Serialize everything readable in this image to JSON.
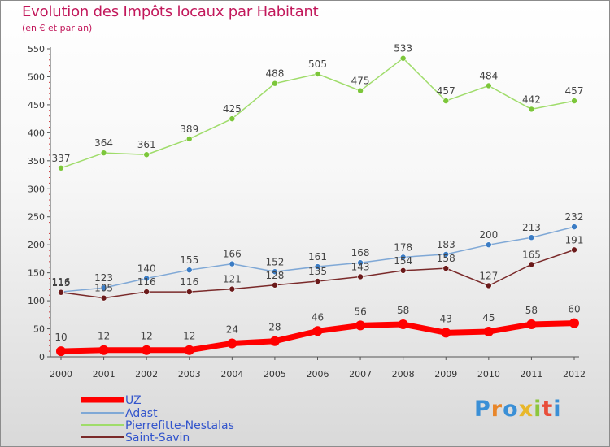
{
  "header": {
    "title": "Evolution des Impôts locaux par Habitant",
    "subtitle": "(en € et par an)"
  },
  "logo": {
    "text": "Proxiti",
    "colors": [
      "#3a8fd6",
      "#e8862a",
      "#3a8fd6",
      "#e8b72a",
      "#8cc63e",
      "#e84e3a",
      "#3a8fd6"
    ]
  },
  "chart_data": {
    "type": "line",
    "x": [
      "2000",
      "2001",
      "2002",
      "2003",
      "2004",
      "2005",
      "2006",
      "2007",
      "2008",
      "2009",
      "2010",
      "2011",
      "2012"
    ],
    "ylim": [
      0,
      550
    ],
    "yticks": [
      0,
      50,
      100,
      150,
      200,
      250,
      300,
      350,
      400,
      450,
      500,
      550
    ],
    "grid": false,
    "legend_position": "bottom-left",
    "series": [
      {
        "name": "UZ",
        "color": "#ff0000",
        "values": [
          10,
          12,
          12,
          12,
          24,
          28,
          46,
          56,
          58,
          43,
          45,
          58,
          60
        ]
      },
      {
        "name": "Adast",
        "color": "#4a86c5",
        "values": [
          116,
          123,
          140,
          155,
          166,
          152,
          161,
          168,
          178,
          183,
          200,
          213,
          232
        ]
      },
      {
        "name": "Pierrefitte-Nestalas",
        "color": "#8cd24b",
        "values": [
          337,
          364,
          361,
          389,
          425,
          488,
          505,
          475,
          533,
          457,
          484,
          442,
          457
        ]
      },
      {
        "name": "Saint-Savin",
        "color": "#6b1a1a",
        "values": [
          115,
          105,
          116,
          116,
          121,
          128,
          135,
          143,
          154,
          158,
          127,
          165,
          191
        ]
      }
    ]
  }
}
